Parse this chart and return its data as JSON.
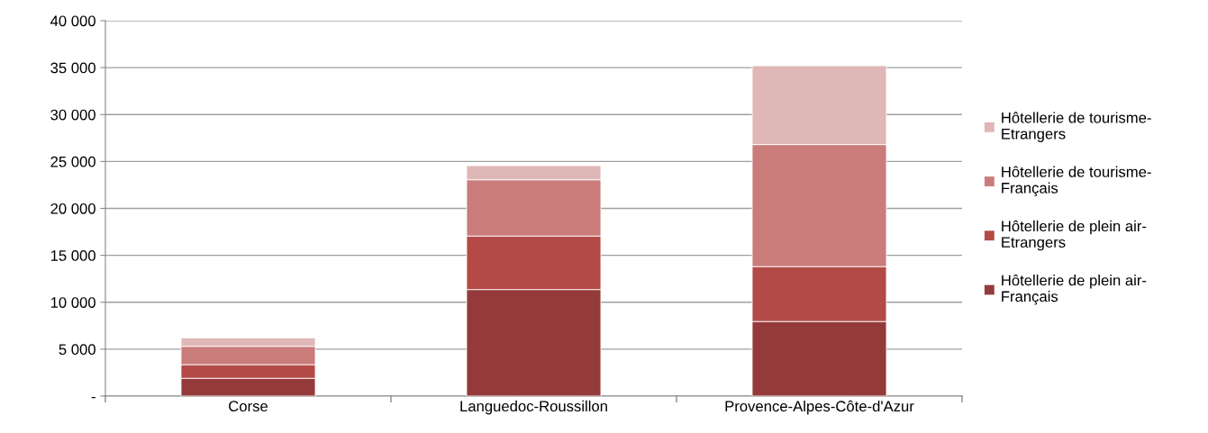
{
  "chart_data": {
    "type": "bar",
    "stacked": true,
    "categories": [
      "Corse",
      "Languedoc-Roussillon",
      "Provence-Alpes-Côte-d'Azur"
    ],
    "series": [
      {
        "name": "Hôtellerie de plein air-\nFrançais",
        "color": "#953a3a",
        "values": [
          1900,
          11350,
          7950
        ]
      },
      {
        "name": "Hôtellerie de plein air-\nEtrangers",
        "color": "#b34a47",
        "values": [
          1450,
          5700,
          5850
        ]
      },
      {
        "name": "Hôtellerie de tourisme-\nFrançais",
        "color": "#c97c7a",
        "values": [
          1950,
          6000,
          13000
        ]
      },
      {
        "name": "Hôtellerie de tourisme-\nEtrangers",
        "color": "#dfb7b6",
        "values": [
          900,
          1500,
          8400
        ]
      }
    ],
    "ylim": [
      0,
      40000
    ],
    "yticks": [
      {
        "value": 0,
        "label": "-"
      },
      {
        "value": 5000,
        "label": "5 000"
      },
      {
        "value": 10000,
        "label": "10 000"
      },
      {
        "value": 15000,
        "label": "15 000"
      },
      {
        "value": 20000,
        "label": "20 000"
      },
      {
        "value": 25000,
        "label": "25 000"
      },
      {
        "value": 30000,
        "label": "30 000"
      },
      {
        "value": 35000,
        "label": "35 000"
      },
      {
        "value": 40000,
        "label": "40 000"
      }
    ],
    "grid": "y",
    "legend": "right"
  }
}
